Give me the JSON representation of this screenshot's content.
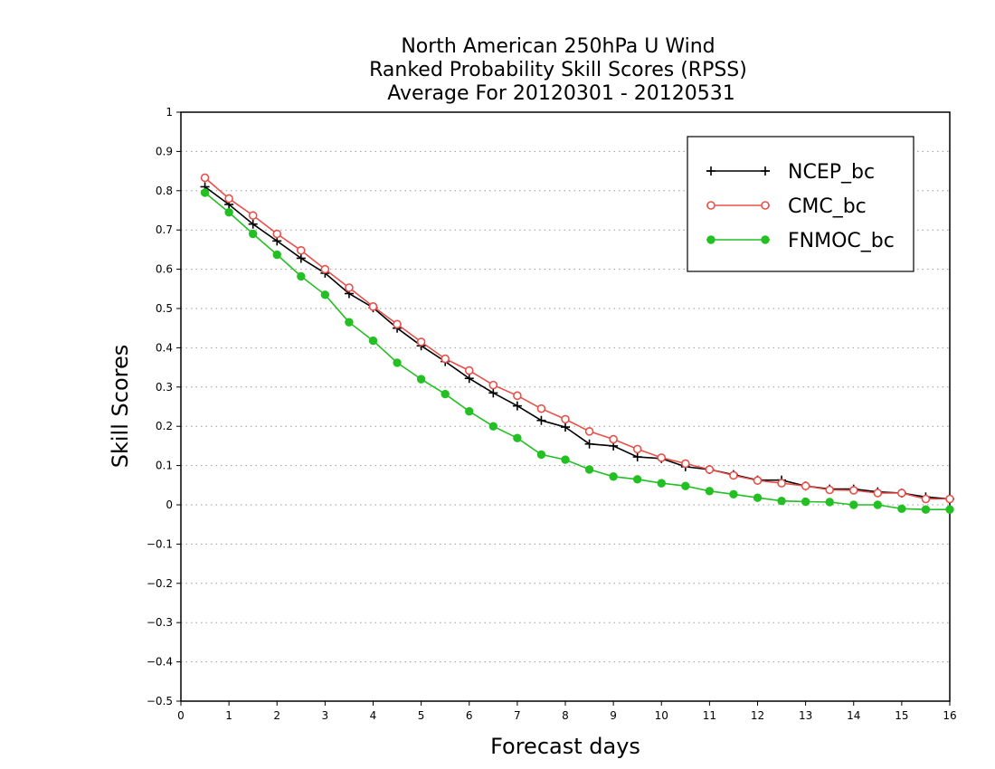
{
  "chart_data": {
    "type": "line",
    "title_lines": [
      "North American 250hPa U Wind",
      "Ranked Probability Skill Scores (RPSS)",
      " Average For 20120301 - 20120531"
    ],
    "xlabel": "Forecast days",
    "ylabel": "Skill Scores",
    "xlim": [
      0,
      16
    ],
    "ylim": [
      -0.5,
      1
    ],
    "x_ticks": [
      0,
      1,
      2,
      3,
      4,
      5,
      6,
      7,
      8,
      9,
      10,
      11,
      12,
      13,
      14,
      15,
      16
    ],
    "x_tick_labels": [
      "0",
      "1",
      "2",
      "3",
      "4",
      "5",
      "6",
      "7",
      "8",
      "9",
      "10",
      "11",
      "12",
      "13",
      "14",
      "15",
      "16"
    ],
    "y_ticks": [
      -0.5,
      -0.4,
      -0.3,
      -0.2,
      -0.1,
      0,
      0.1,
      0.2,
      0.3,
      0.4,
      0.5,
      0.6,
      0.7,
      0.8,
      0.9,
      1
    ],
    "y_tick_labels": [
      "−0.5",
      "−0.4",
      "−0.3",
      "−0.2",
      "−0.1",
      "0",
      "0.1",
      "0.2",
      "0.3",
      "0.4",
      "0.5",
      "0.6",
      "0.7",
      "0.8",
      "0.9",
      "1"
    ],
    "grid": "horizontal dotted",
    "legend_position": "top-right",
    "x": [
      0.5,
      1,
      1.5,
      2,
      2.5,
      3,
      3.5,
      4,
      4.5,
      5,
      5.5,
      6,
      6.5,
      7,
      7.5,
      8,
      8.5,
      9,
      9.5,
      10,
      10.5,
      11,
      11.5,
      12,
      12.5,
      13,
      13.5,
      14,
      14.5,
      15,
      15.5,
      16
    ],
    "series": [
      {
        "name": "NCEP_bc",
        "color": "#000000",
        "marker": "plus",
        "values": [
          0.81,
          0.765,
          0.715,
          0.672,
          0.628,
          0.59,
          0.538,
          0.502,
          0.45,
          0.405,
          0.365,
          0.322,
          0.285,
          0.252,
          0.215,
          0.198,
          0.155,
          0.15,
          0.122,
          0.118,
          0.097,
          0.09,
          0.077,
          0.063,
          0.063,
          0.048,
          0.04,
          0.04,
          0.033,
          0.03,
          0.02,
          0.015
        ]
      },
      {
        "name": "CMC_bc",
        "color": "#e8504a",
        "marker": "open-circle",
        "values": [
          0.833,
          0.78,
          0.737,
          0.69,
          0.648,
          0.6,
          0.553,
          0.505,
          0.46,
          0.415,
          0.372,
          0.342,
          0.305,
          0.278,
          0.245,
          0.218,
          0.187,
          0.167,
          0.142,
          0.12,
          0.105,
          0.09,
          0.075,
          0.062,
          0.055,
          0.048,
          0.038,
          0.037,
          0.03,
          0.03,
          0.015,
          0.015
        ]
      },
      {
        "name": "FNMOC_bc",
        "color": "#22c022",
        "marker": "filled-circle",
        "values": [
          0.795,
          0.745,
          0.69,
          0.637,
          0.582,
          0.535,
          0.465,
          0.418,
          0.362,
          0.32,
          0.282,
          0.238,
          0.2,
          0.17,
          0.128,
          0.115,
          0.09,
          0.072,
          0.065,
          0.055,
          0.048,
          0.035,
          0.027,
          0.018,
          0.01,
          0.008,
          0.007,
          0.0,
          0.0,
          -0.01,
          -0.012,
          -0.012
        ]
      }
    ]
  }
}
